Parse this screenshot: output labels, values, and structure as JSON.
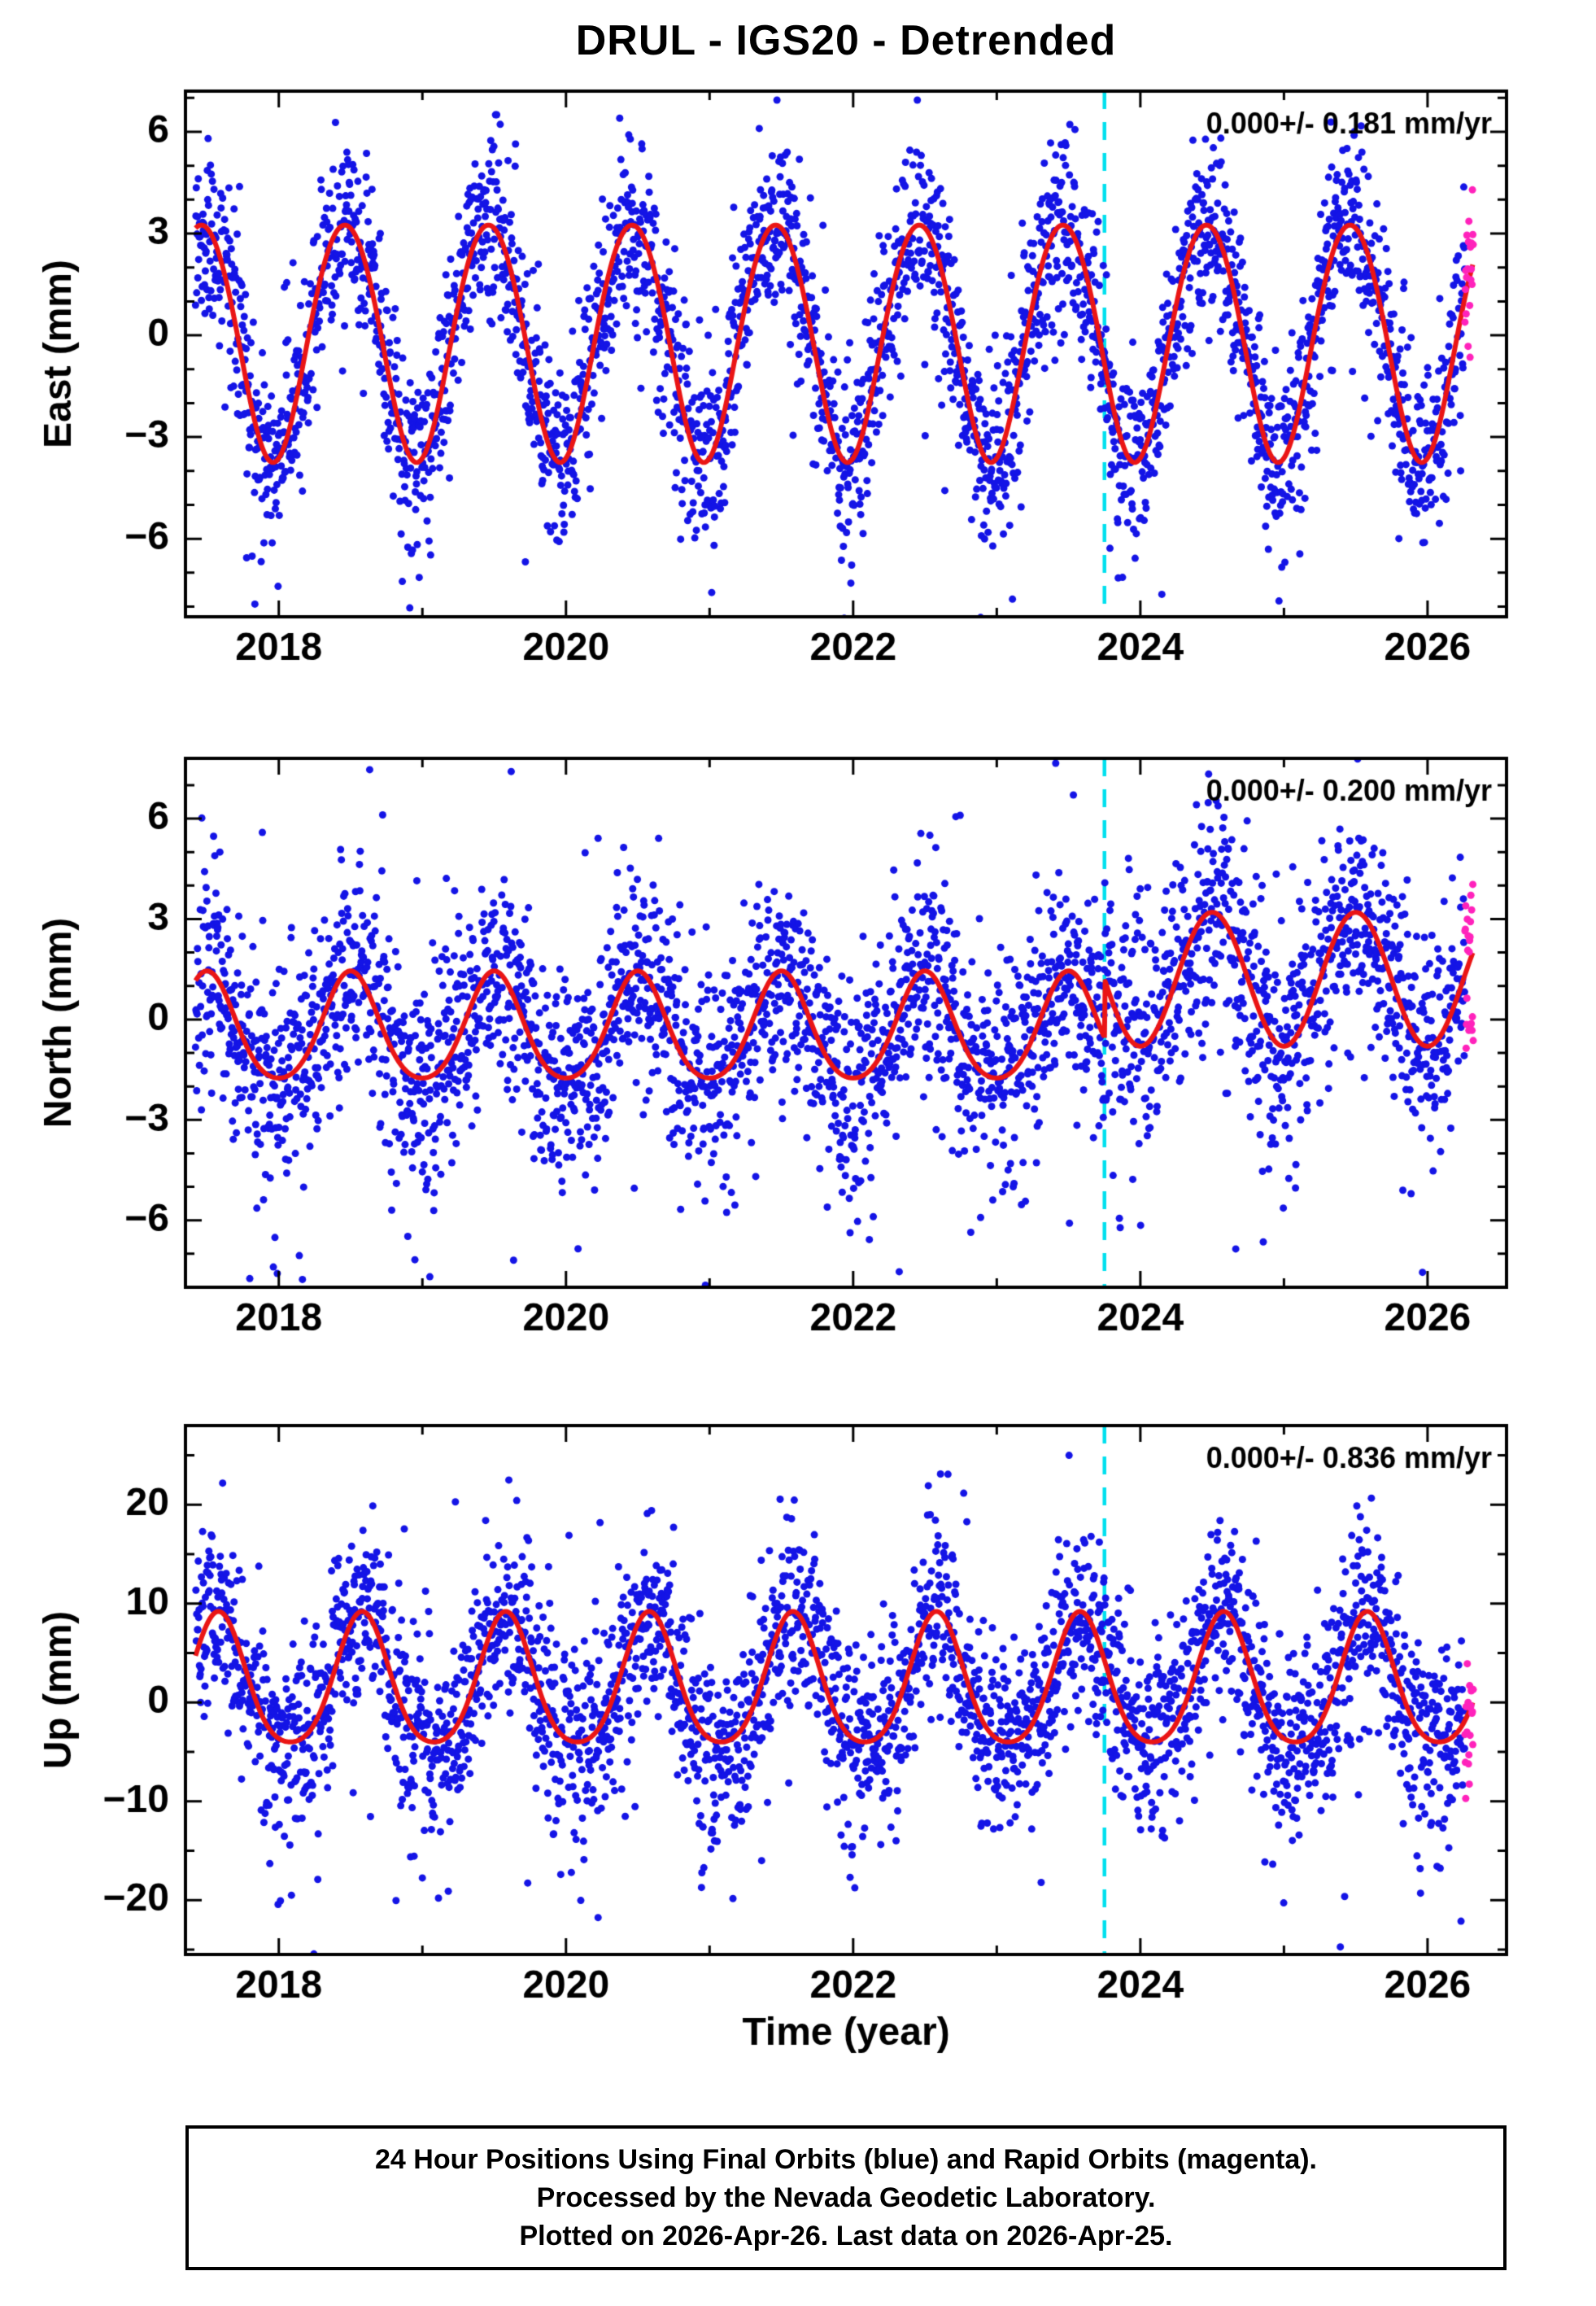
{
  "title": "DRUL - IGS20 - Detrended",
  "xlabel": "Time (year)",
  "caption": {
    "lines": [
      "24 Hour Positions Using Final Orbits (blue) and Rapid Orbits (magenta).",
      "Processed by the Nevada Geodetic Laboratory.",
      "Plotted on 2026-Apr-26. Last data on 2026-Apr-25."
    ]
  },
  "style": {
    "final_orbit_color": "#1414e6",
    "rapid_orbit_color": "#ff22bb",
    "model_color": "#ea1515",
    "event_line_color": "#00e0ee",
    "frame_color": "#000000",
    "background": "#ffffff"
  },
  "event_line_x": 2023.75,
  "series_legend": [
    {
      "name": "Final Orbits",
      "color": "#1414e6"
    },
    {
      "name": "Rapid Orbits",
      "color": "#ff22bb"
    },
    {
      "name": "Seasonal model fit",
      "color": "#ea1515"
    },
    {
      "name": "Event / step epoch",
      "color": "#00e0ee"
    }
  ],
  "chart_data": [
    {
      "type": "scatter",
      "ylabel": "East (mm)",
      "annotation": "0.000+/- 0.181 mm/yr",
      "xlim": [
        2017.35,
        2026.55
      ],
      "ylim": [
        -8.3,
        7.2
      ],
      "yticks": [
        -6,
        -3,
        0,
        3,
        6
      ],
      "xticks": [
        2018,
        2020,
        2022,
        2024,
        2026
      ],
      "x_minor_step": 1,
      "y_minor_step": 1,
      "data_start": 2017.42,
      "data_end": 2026.32,
      "rapid_start": 2026.26,
      "noise_sigma": 1.35,
      "model_segments": [
        {
          "t_start": 2017.42,
          "t_end": 2026.32,
          "mean": -0.1,
          "annual_amp": 3.5,
          "annual_peak": 0.46,
          "semi_amp": 0.15,
          "semi_peak": 0.21
        }
      ]
    },
    {
      "type": "scatter",
      "ylabel": "North (mm)",
      "annotation": "0.000+/- 0.200 mm/yr",
      "xlim": [
        2017.35,
        2026.55
      ],
      "ylim": [
        -8.0,
        7.8
      ],
      "yticks": [
        -6,
        -3,
        0,
        3,
        6
      ],
      "xticks": [
        2018,
        2020,
        2022,
        2024,
        2026
      ],
      "x_minor_step": 1,
      "y_minor_step": 1,
      "data_start": 2017.42,
      "data_end": 2026.32,
      "rapid_start": 2026.26,
      "noise_sigma": 1.55,
      "model_segments": [
        {
          "t_start": 2017.42,
          "t_end": 2023.75,
          "mean": -0.35,
          "annual_amp": 1.6,
          "annual_peak": 0.5,
          "semi_amp": 0.2,
          "semi_peak": 0.0
        },
        {
          "t_start": 2023.75,
          "t_end": 2026.32,
          "mean": 1.2,
          "annual_amp": 2.0,
          "annual_peak": 0.5,
          "semi_amp": 0.0,
          "semi_peak": 0.0
        }
      ]
    },
    {
      "type": "scatter",
      "ylabel": "Up (mm)",
      "annotation": "0.000+/- 0.836 mm/yr",
      "xlim": [
        2017.35,
        2026.55
      ],
      "ylim": [
        -25.5,
        28.0
      ],
      "yticks": [
        -20,
        -10,
        0,
        10,
        20
      ],
      "xticks": [
        2018,
        2020,
        2022,
        2024,
        2026
      ],
      "x_minor_step": 1,
      "y_minor_step": 5,
      "data_start": 2017.42,
      "data_end": 2026.32,
      "rapid_start": 2026.26,
      "noise_sigma": 4.6,
      "model_segments": [
        {
          "t_start": 2017.42,
          "t_end": 2026.32,
          "mean": 1.6,
          "annual_amp": 6.6,
          "annual_peak": 0.58,
          "semi_amp": 1.0,
          "semi_peak": 0.58
        }
      ]
    }
  ]
}
